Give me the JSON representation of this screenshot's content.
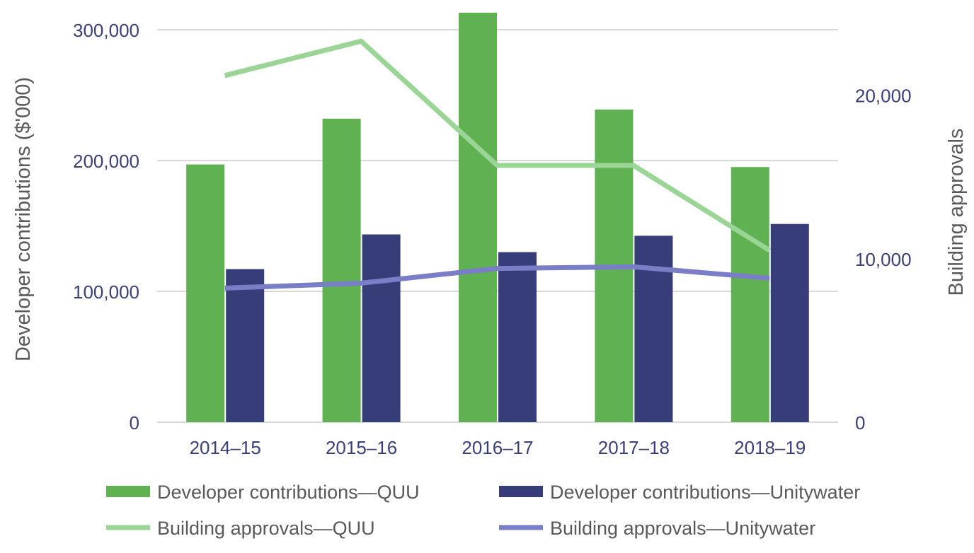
{
  "chart_data": {
    "type": "bar",
    "categories": [
      "2014–15",
      "2015–16",
      "2016–17",
      "2017–18",
      "2018–19"
    ],
    "ylabel": "Developer contributions ($'000)",
    "y2label": "Building approvals",
    "ylim": [
      0,
      300000
    ],
    "y2lim": [
      0,
      24000
    ],
    "yticks": [
      0,
      100000,
      200000,
      300000
    ],
    "yticks_labels": [
      "0",
      "100,000",
      "200,000",
      "300,000"
    ],
    "y2ticks": [
      0,
      10000,
      20000
    ],
    "y2ticks_labels": [
      "0",
      "10,000",
      "20,000"
    ],
    "grid": true,
    "legend_position": "bottom",
    "series": [
      {
        "name": "Developer contributions—QUU",
        "kind": "bar",
        "axis": "left",
        "color": "#5fb152",
        "values": [
          197000,
          232000,
          313000,
          239000,
          195000
        ]
      },
      {
        "name": "Developer contributions—Unitywater",
        "kind": "bar",
        "axis": "left",
        "color": "#373d79",
        "values": [
          117000,
          143500,
          130000,
          142500,
          151500
        ]
      },
      {
        "name": "Building approvals—QUU",
        "kind": "line",
        "axis": "right",
        "color": "#9ad596",
        "values": [
          21200,
          23300,
          15700,
          15700,
          10500
        ]
      },
      {
        "name": "Building approvals—Unitywater",
        "kind": "line",
        "axis": "right",
        "color": "#7a7ec7",
        "values": [
          8200,
          8500,
          9400,
          9500,
          8800
        ]
      }
    ],
    "colors": {
      "tick_text": "#3a3f7b",
      "axis_title": "#595959",
      "legend_text": "#595959",
      "grid": "#d9d9d9"
    }
  }
}
